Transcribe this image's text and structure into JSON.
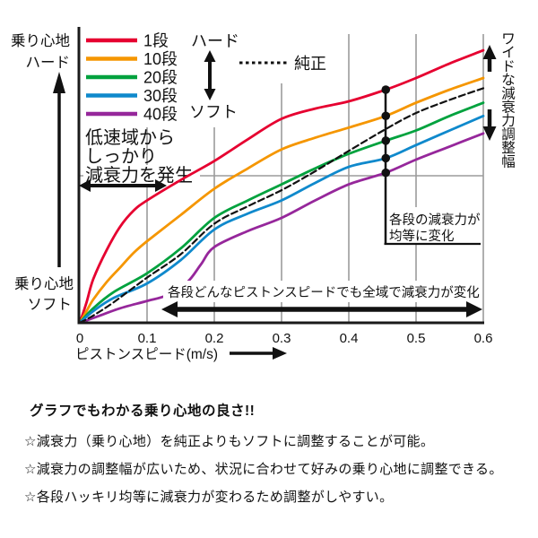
{
  "chart": {
    "y_top_line1": "乗り心地",
    "y_top_line2": "ハード",
    "y_bottom_line1": "乗り心地",
    "y_bottom_line2": "ソフト",
    "x_title": "ピストンスピード(m/s)",
    "legend_hard": "ハード",
    "legend_soft": "ソフト",
    "legend_stock": "純正",
    "right_label": "ワイドな減衰力調整幅",
    "ann_low_speed_1": "低速域から",
    "ann_low_speed_2": "しっかり",
    "ann_low_speed_3": "減衰力を発生",
    "ann_equal_1": "各段の減衰力が",
    "ann_equal_2": "均等に変化",
    "ann_full_range": "各段どんなピストンスピードでも全域で減衰力が変化"
  },
  "colors": {
    "grid": "#9b9b9b",
    "axis": "#1a1a1a",
    "text": "#111111",
    "marker": "#111111"
  },
  "chart_data": {
    "type": "line",
    "title": "",
    "xlabel": "ピストンスピード(m/s)",
    "ylabel": "乗り心地",
    "y_top_label": "ハード",
    "y_bottom_label": "ソフト",
    "xlim": [
      0,
      0.6
    ],
    "ylim": [
      0,
      100
    ],
    "y_units": "relative damping force",
    "x_ticks": [
      0,
      0.1,
      0.2,
      0.3,
      0.4,
      0.5,
      0.6
    ],
    "x_tick_labels": [
      "0",
      "0.1",
      "0.2",
      "0.3",
      "0.4",
      "0.5",
      "0.6"
    ],
    "grid": "vertical at each 0.1 plus one horizontal reference line",
    "legend_position": "top-left",
    "marker_x": 0.455,
    "series": [
      {
        "name": "1段",
        "color": "#e60030",
        "dashed": false,
        "marker": true,
        "points": [
          [
            0,
            0
          ],
          [
            0.01,
            7
          ],
          [
            0.02,
            15
          ],
          [
            0.04,
            25
          ],
          [
            0.06,
            33
          ],
          [
            0.08,
            38.5
          ],
          [
            0.1,
            42
          ],
          [
            0.15,
            49
          ],
          [
            0.2,
            55.5
          ],
          [
            0.25,
            63
          ],
          [
            0.3,
            70
          ],
          [
            0.35,
            73.5
          ],
          [
            0.4,
            76
          ],
          [
            0.455,
            80
          ],
          [
            0.5,
            84
          ],
          [
            0.55,
            89
          ],
          [
            0.6,
            93.5
          ]
        ]
      },
      {
        "name": "10段",
        "color": "#f59600",
        "dashed": false,
        "marker": true,
        "points": [
          [
            0,
            0
          ],
          [
            0.01,
            4
          ],
          [
            0.02,
            8
          ],
          [
            0.04,
            14
          ],
          [
            0.06,
            19
          ],
          [
            0.08,
            24
          ],
          [
            0.1,
            28
          ],
          [
            0.15,
            37
          ],
          [
            0.2,
            46
          ],
          [
            0.25,
            53
          ],
          [
            0.3,
            59.5
          ],
          [
            0.35,
            63.5
          ],
          [
            0.4,
            67
          ],
          [
            0.455,
            71
          ],
          [
            0.5,
            75.5
          ],
          [
            0.55,
            80
          ],
          [
            0.6,
            84
          ]
        ]
      },
      {
        "name": "20段",
        "color": "#00a23e",
        "dashed": false,
        "marker": true,
        "points": [
          [
            0,
            0
          ],
          [
            0.02,
            5
          ],
          [
            0.05,
            10.5
          ],
          [
            0.1,
            17
          ],
          [
            0.15,
            25.5
          ],
          [
            0.2,
            36
          ],
          [
            0.25,
            42
          ],
          [
            0.3,
            47.5
          ],
          [
            0.35,
            53
          ],
          [
            0.4,
            58
          ],
          [
            0.455,
            62.5
          ],
          [
            0.5,
            66
          ],
          [
            0.55,
            71
          ],
          [
            0.6,
            75.5
          ]
        ]
      },
      {
        "name": "30段",
        "color": "#0f89cc",
        "dashed": false,
        "marker": true,
        "points": [
          [
            0,
            0
          ],
          [
            0.02,
            4
          ],
          [
            0.05,
            8.5
          ],
          [
            0.1,
            13.5
          ],
          [
            0.15,
            21.5
          ],
          [
            0.2,
            32
          ],
          [
            0.25,
            37.5
          ],
          [
            0.3,
            42
          ],
          [
            0.35,
            48
          ],
          [
            0.4,
            53.5
          ],
          [
            0.455,
            56.5
          ],
          [
            0.5,
            61
          ],
          [
            0.55,
            66
          ],
          [
            0.6,
            71
          ]
        ]
      },
      {
        "name": "40段",
        "color": "#96279b",
        "dashed": false,
        "marker": true,
        "points": [
          [
            0,
            0
          ],
          [
            0.03,
            2.5
          ],
          [
            0.06,
            5
          ],
          [
            0.1,
            7.5
          ],
          [
            0.13,
            9.5
          ],
          [
            0.16,
            14
          ],
          [
            0.18,
            20
          ],
          [
            0.2,
            26
          ],
          [
            0.25,
            31.5
          ],
          [
            0.3,
            36
          ],
          [
            0.35,
            42
          ],
          [
            0.4,
            47.5
          ],
          [
            0.455,
            51.5
          ],
          [
            0.5,
            56
          ],
          [
            0.55,
            60.5
          ],
          [
            0.6,
            65
          ]
        ]
      },
      {
        "name": "純正",
        "color": "#111111",
        "dashed": true,
        "marker": false,
        "points": [
          [
            0,
            0
          ],
          [
            0.02,
            2.5
          ],
          [
            0.05,
            7
          ],
          [
            0.1,
            15.5
          ],
          [
            0.15,
            23.5
          ],
          [
            0.2,
            34
          ],
          [
            0.25,
            40
          ],
          [
            0.3,
            45.5
          ],
          [
            0.35,
            52
          ],
          [
            0.4,
            59
          ],
          [
            0.455,
            66.5
          ],
          [
            0.5,
            72
          ],
          [
            0.55,
            76.5
          ],
          [
            0.6,
            80.5
          ]
        ]
      }
    ]
  },
  "footer": {
    "headline": "グラフでもわかる乗り心地の良さ!!",
    "bullets": [
      "☆減衰力（乗り心地）を純正よりもソフトに調整することが可能。",
      "☆減衰力の調整幅が広いため、状況に合わせて好みの乗り心地に調整できる。",
      "☆各段ハッキリ均等に減衰力が変わるため調整がしやすい。"
    ]
  }
}
